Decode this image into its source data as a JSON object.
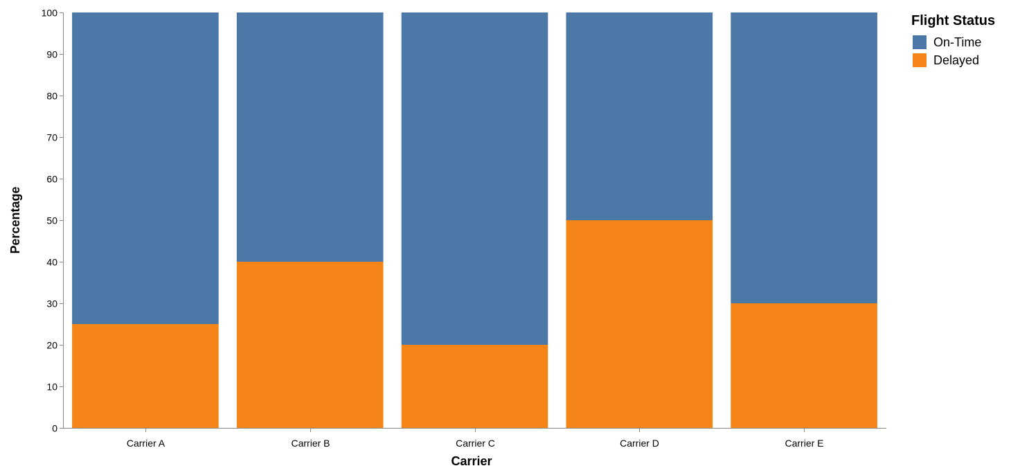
{
  "chart_data": {
    "type": "bar",
    "stacked": true,
    "categories": [
      "Carrier A",
      "Carrier B",
      "Carrier C",
      "Carrier D",
      "Carrier E"
    ],
    "series": [
      {
        "name": "Delayed",
        "values": [
          25,
          40,
          20,
          50,
          30
        ],
        "color": "#f58518"
      },
      {
        "name": "On-Time",
        "values": [
          75,
          60,
          80,
          50,
          70
        ],
        "color": "#4c78a8"
      }
    ],
    "xlabel": "Carrier",
    "ylabel": "Percentage",
    "ylim": [
      0,
      100
    ],
    "yticks": [
      0,
      10,
      20,
      30,
      40,
      50,
      60,
      70,
      80,
      90,
      100
    ],
    "grid": false,
    "legend": {
      "title": "Flight Status",
      "position": "top-right",
      "items": [
        {
          "label": "On-Time",
          "color": "#4c78a8"
        },
        {
          "label": "Delayed",
          "color": "#f58518"
        }
      ]
    }
  }
}
